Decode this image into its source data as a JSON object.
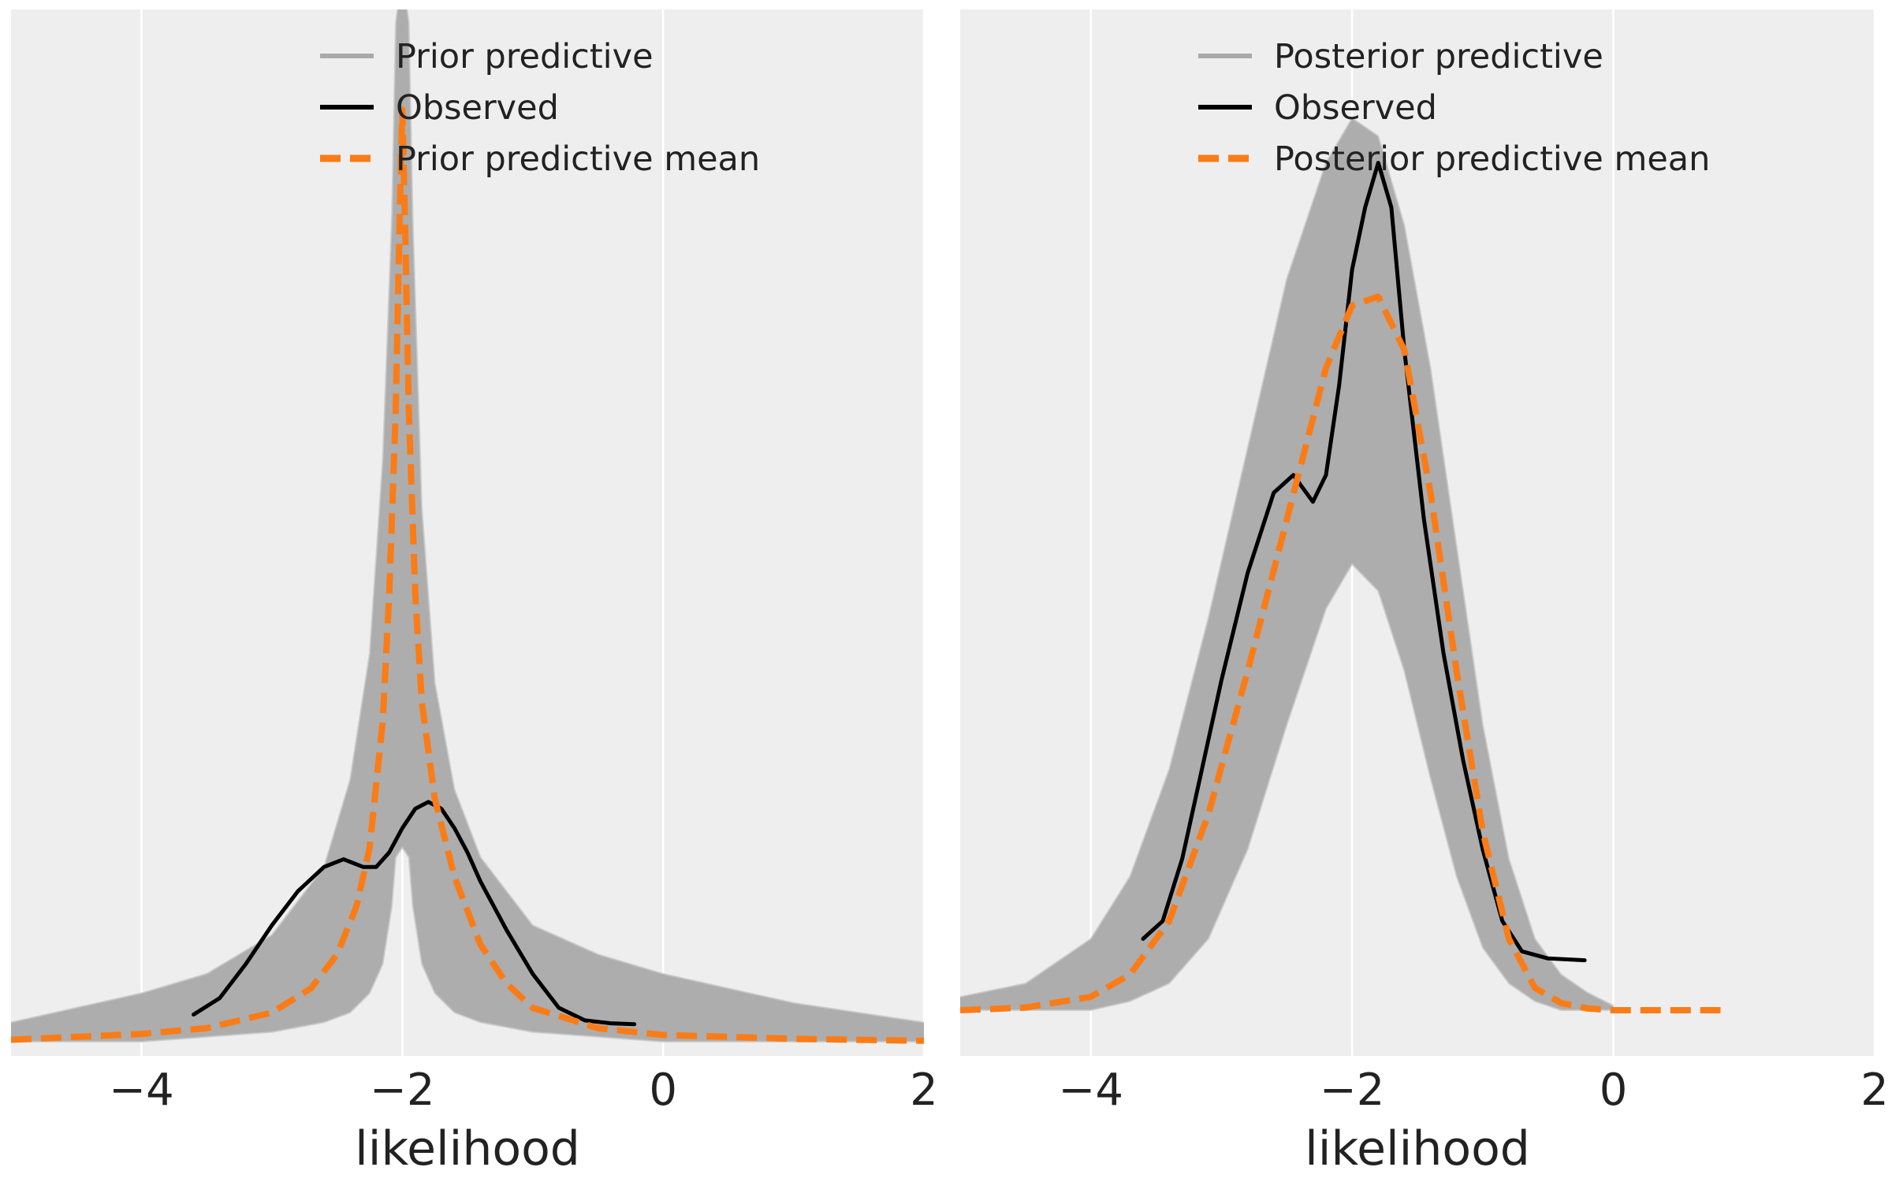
{
  "colors": {
    "panel_bg": "#eeeeee",
    "grid": "#ffffff",
    "predictive": "#a9a9a9",
    "observed": "#000000",
    "mean": "#fa7c17",
    "text": "#222222"
  },
  "chart_data": [
    {
      "type": "line",
      "panel": "prior",
      "xlabel": "likelihood",
      "ylabel": "",
      "xlim": [
        -5,
        2
      ],
      "ylim": [
        0,
        1.0
      ],
      "xticks": [
        -4,
        -2,
        0,
        2
      ],
      "xtick_labels": [
        "−4",
        "−2",
        "0",
        "2"
      ],
      "grid": "x-only",
      "legend": {
        "placement": "top-right",
        "entries": [
          {
            "label": "Prior predictive",
            "style": "predictive"
          },
          {
            "label": "Observed",
            "style": "observed"
          },
          {
            "label": "Prior predictive mean",
            "style": "mean"
          }
        ]
      },
      "series": [
        {
          "name": "Prior predictive",
          "style": "predictive",
          "description_kind": "band",
          "x": [
            -5.0,
            -4.0,
            -3.5,
            -3.0,
            -2.6,
            -2.4,
            -2.25,
            -2.15,
            -2.08,
            -2.05,
            -2.0,
            -1.95,
            -1.92,
            -1.85,
            -1.75,
            -1.6,
            -1.4,
            -1.0,
            -0.5,
            0.0,
            1.0,
            2.0
          ],
          "upper": [
            0.02,
            0.05,
            0.07,
            0.11,
            0.18,
            0.27,
            0.4,
            0.6,
            0.85,
            1.05,
            1.1,
            1.05,
            0.85,
            0.55,
            0.37,
            0.26,
            0.19,
            0.12,
            0.09,
            0.07,
            0.04,
            0.02
          ],
          "lower": [
            0.0,
            0.0,
            0.005,
            0.01,
            0.02,
            0.03,
            0.05,
            0.08,
            0.14,
            0.19,
            0.2,
            0.19,
            0.14,
            0.08,
            0.05,
            0.03,
            0.02,
            0.01,
            0.005,
            0.0,
            0.0,
            0.0
          ]
        },
        {
          "name": "Observed",
          "style": "observed",
          "x": [
            -3.6,
            -3.4,
            -3.2,
            -3.0,
            -2.8,
            -2.6,
            -2.45,
            -2.3,
            -2.2,
            -2.1,
            -2.0,
            -1.9,
            -1.8,
            -1.7,
            -1.6,
            -1.5,
            -1.4,
            -1.2,
            -1.0,
            -0.8,
            -0.6,
            -0.4,
            -0.22
          ],
          "y": [
            0.028,
            0.045,
            0.08,
            0.12,
            0.155,
            0.18,
            0.188,
            0.18,
            0.18,
            0.195,
            0.22,
            0.24,
            0.247,
            0.24,
            0.22,
            0.195,
            0.165,
            0.115,
            0.07,
            0.035,
            0.022,
            0.019,
            0.018
          ]
        },
        {
          "name": "Prior predictive mean",
          "style": "mean",
          "x": [
            -5.0,
            -4.0,
            -3.5,
            -3.0,
            -2.7,
            -2.5,
            -2.35,
            -2.25,
            -2.15,
            -2.1,
            -2.05,
            -2.02,
            -2.0,
            -1.98,
            -1.95,
            -1.9,
            -1.85,
            -1.75,
            -1.6,
            -1.4,
            -1.2,
            -1.0,
            -0.5,
            0.0,
            1.0,
            2.0
          ],
          "y": [
            0.002,
            0.008,
            0.014,
            0.03,
            0.055,
            0.09,
            0.14,
            0.2,
            0.33,
            0.46,
            0.65,
            0.85,
            0.96,
            0.85,
            0.65,
            0.46,
            0.35,
            0.25,
            0.17,
            0.1,
            0.06,
            0.035,
            0.014,
            0.007,
            0.003,
            0.001
          ]
        }
      ]
    },
    {
      "type": "line",
      "panel": "posterior",
      "xlabel": "likelihood",
      "ylabel": "",
      "xlim": [
        -5,
        2
      ],
      "ylim": [
        0,
        1.0
      ],
      "xticks": [
        -4,
        -2,
        0,
        2
      ],
      "xtick_labels": [
        "−4",
        "−2",
        "0",
        "2"
      ],
      "grid": "x-only",
      "legend": {
        "placement": "top-right",
        "entries": [
          {
            "label": "Posterior predictive",
            "style": "predictive"
          },
          {
            "label": "Observed",
            "style": "observed"
          },
          {
            "label": "Posterior predictive mean",
            "style": "mean"
          }
        ]
      },
      "series": [
        {
          "name": "Posterior predictive",
          "style": "predictive",
          "description_kind": "band",
          "x": [
            -5.0,
            -4.5,
            -4.0,
            -3.7,
            -3.4,
            -3.1,
            -2.8,
            -2.5,
            -2.2,
            -2.0,
            -1.8,
            -1.6,
            -1.4,
            -1.2,
            -1.0,
            -0.8,
            -0.6,
            -0.4,
            -0.2,
            0.0
          ],
          "upper": [
            0.015,
            0.03,
            0.08,
            0.15,
            0.27,
            0.44,
            0.63,
            0.82,
            0.95,
            1.0,
            0.98,
            0.88,
            0.72,
            0.52,
            0.32,
            0.17,
            0.08,
            0.04,
            0.02,
            0.005
          ],
          "lower": [
            0.0,
            0.0,
            0.0,
            0.01,
            0.03,
            0.08,
            0.18,
            0.32,
            0.45,
            0.5,
            0.47,
            0.38,
            0.26,
            0.15,
            0.07,
            0.03,
            0.01,
            0.0,
            0.0,
            0.0
          ]
        },
        {
          "name": "Observed",
          "style": "observed",
          "x": [
            -3.6,
            -3.45,
            -3.3,
            -3.15,
            -3.0,
            -2.8,
            -2.6,
            -2.45,
            -2.3,
            -2.2,
            -2.1,
            -2.0,
            -1.9,
            -1.8,
            -1.7,
            -1.6,
            -1.45,
            -1.3,
            -1.15,
            -1.0,
            -0.85,
            -0.7,
            -0.5,
            -0.22
          ],
          "y": [
            0.08,
            0.1,
            0.17,
            0.27,
            0.37,
            0.49,
            0.58,
            0.6,
            0.57,
            0.6,
            0.7,
            0.83,
            0.9,
            0.95,
            0.9,
            0.74,
            0.55,
            0.4,
            0.28,
            0.18,
            0.1,
            0.066,
            0.058,
            0.056
          ]
        },
        {
          "name": "Posterior predictive mean",
          "style": "mean",
          "x": [
            -5.0,
            -4.5,
            -4.0,
            -3.7,
            -3.4,
            -3.1,
            -2.8,
            -2.5,
            -2.2,
            -2.0,
            -1.8,
            -1.6,
            -1.4,
            -1.2,
            -1.0,
            -0.8,
            -0.6,
            -0.4,
            -0.2,
            0.0,
            0.4,
            0.82
          ],
          "y": [
            0.0,
            0.003,
            0.015,
            0.04,
            0.1,
            0.22,
            0.38,
            0.55,
            0.72,
            0.79,
            0.8,
            0.74,
            0.58,
            0.38,
            0.2,
            0.08,
            0.025,
            0.008,
            0.002,
            0.0,
            0.0,
            0.0
          ]
        }
      ]
    }
  ]
}
